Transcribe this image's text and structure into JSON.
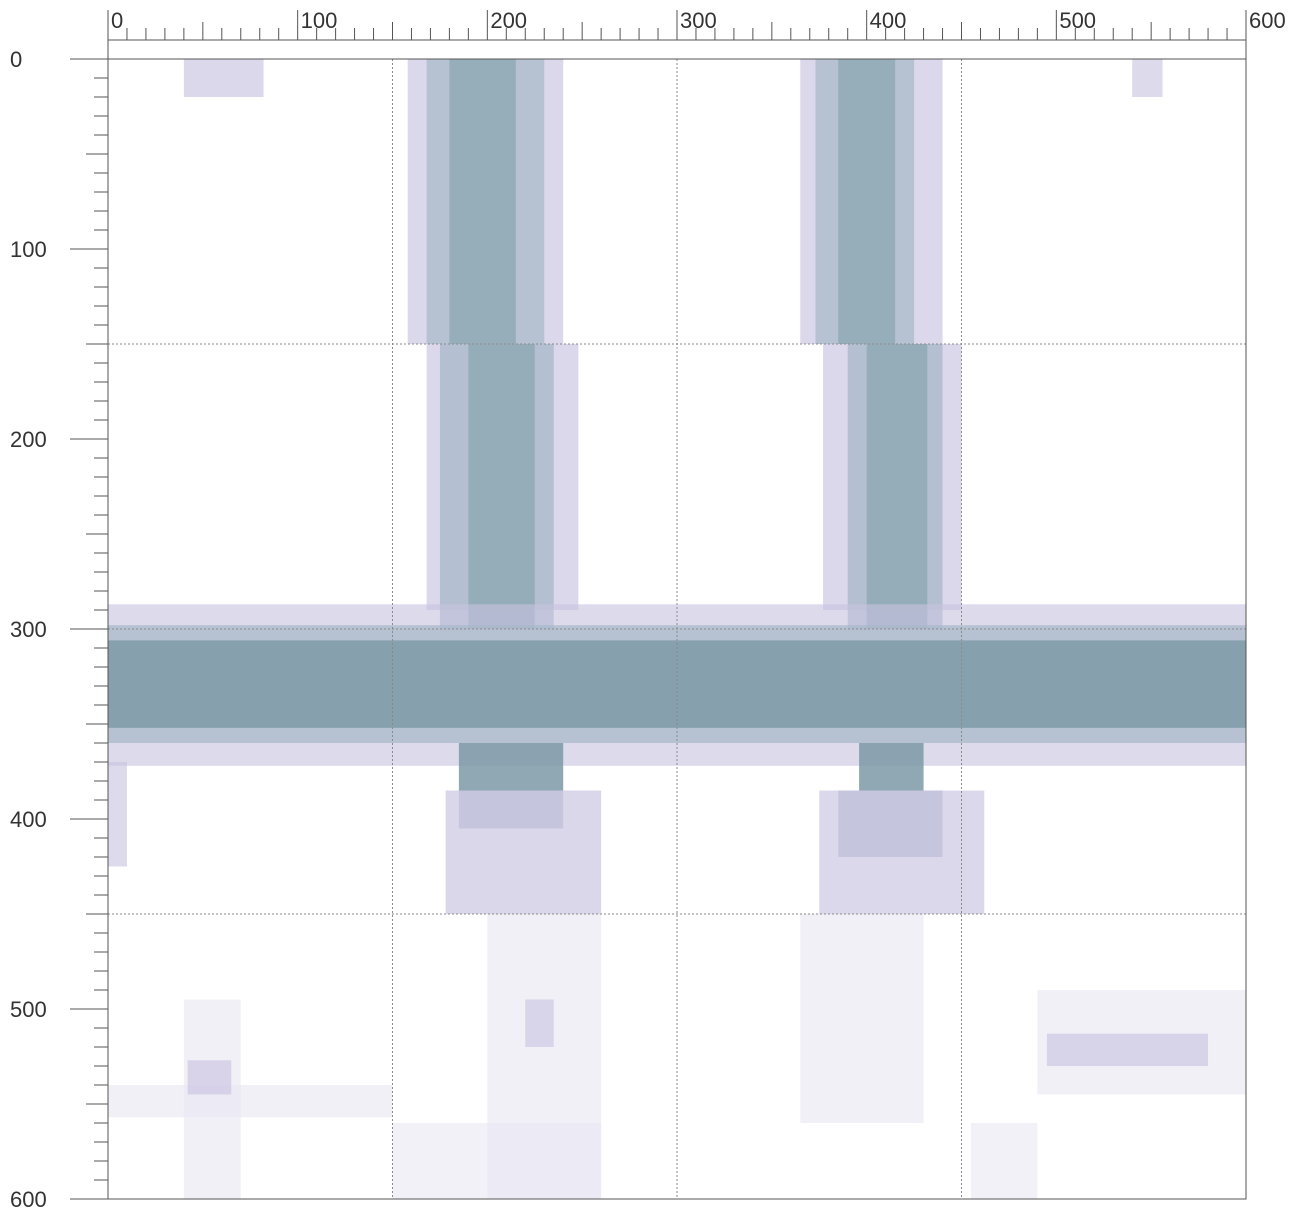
{
  "chart_data": {
    "type": "heatmap",
    "title": "",
    "xlabel": "",
    "ylabel": "",
    "xlim": [
      0,
      600
    ],
    "ylim": [
      0,
      600
    ],
    "y_axis_inverted": true,
    "x_ticks": [
      0,
      100,
      200,
      300,
      400,
      500,
      600
    ],
    "y_ticks": [
      0,
      100,
      200,
      300,
      400,
      500,
      600
    ],
    "x_tick_labels": [
      "0",
      "100",
      "200",
      "300",
      "400",
      "500",
      "600"
    ],
    "y_tick_labels": [
      "0",
      "100",
      "200",
      "300",
      "400",
      "500",
      "600"
    ],
    "x_minor_tick_step": 10,
    "y_minor_tick_step": 10,
    "grid": true,
    "grid_lines_x": [
      150,
      300,
      450
    ],
    "grid_lines_y": [
      150,
      300,
      450
    ],
    "colors": {
      "low": "#e8e6f2",
      "mid_low": "#c8c2e0",
      "mid": "#a7b8c8",
      "mid_high": "#8fa9b4",
      "high": "#7e9ba8",
      "grid": "#8a8a8a",
      "axis": "#555555"
    },
    "cells": [
      {
        "x0": 40,
        "x1": 82,
        "y0": 0,
        "y1": 20,
        "v": 0.2
      },
      {
        "x0": 540,
        "x1": 556,
        "y0": 0,
        "y1": 20,
        "v": 0.15
      },
      {
        "x0": 158,
        "x1": 240,
        "y0": 0,
        "y1": 150,
        "v": 0.2
      },
      {
        "x0": 168,
        "x1": 230,
        "y0": 0,
        "y1": 150,
        "v": 0.45
      },
      {
        "x0": 180,
        "x1": 215,
        "y0": 0,
        "y1": 150,
        "v": 0.7
      },
      {
        "x0": 168,
        "x1": 248,
        "y0": 150,
        "y1": 290,
        "v": 0.2
      },
      {
        "x0": 175,
        "x1": 235,
        "y0": 150,
        "y1": 300,
        "v": 0.5
      },
      {
        "x0": 190,
        "x1": 225,
        "y0": 150,
        "y1": 300,
        "v": 0.75
      },
      {
        "x0": 365,
        "x1": 440,
        "y0": 0,
        "y1": 150,
        "v": 0.2
      },
      {
        "x0": 373,
        "x1": 425,
        "y0": 0,
        "y1": 150,
        "v": 0.45
      },
      {
        "x0": 385,
        "x1": 415,
        "y0": 0,
        "y1": 150,
        "v": 0.7
      },
      {
        "x0": 377,
        "x1": 450,
        "y0": 150,
        "y1": 290,
        "v": 0.2
      },
      {
        "x0": 390,
        "x1": 440,
        "y0": 150,
        "y1": 300,
        "v": 0.5
      },
      {
        "x0": 400,
        "x1": 432,
        "y0": 150,
        "y1": 300,
        "v": 0.75
      },
      {
        "x0": 0,
        "x1": 600,
        "y0": 287,
        "y1": 372,
        "v": 0.15
      },
      {
        "x0": 0,
        "x1": 600,
        "y0": 298,
        "y1": 360,
        "v": 0.45
      },
      {
        "x0": 0,
        "x1": 600,
        "y0": 306,
        "y1": 352,
        "v": 0.8
      },
      {
        "x0": 0,
        "x1": 10,
        "y0": 370,
        "y1": 425,
        "v": 0.15
      },
      {
        "x0": 185,
        "x1": 240,
        "y0": 360,
        "y1": 385,
        "v": 0.8
      },
      {
        "x0": 185,
        "x1": 240,
        "y0": 385,
        "y1": 405,
        "v": 0.45
      },
      {
        "x0": 178,
        "x1": 260,
        "y0": 385,
        "y1": 450,
        "v": 0.25
      },
      {
        "x0": 396,
        "x1": 430,
        "y0": 360,
        "y1": 385,
        "v": 0.8
      },
      {
        "x0": 385,
        "x1": 440,
        "y0": 385,
        "y1": 420,
        "v": 0.4
      },
      {
        "x0": 375,
        "x1": 462,
        "y0": 385,
        "y1": 450,
        "v": 0.2
      },
      {
        "x0": 200,
        "x1": 260,
        "y0": 450,
        "y1": 600,
        "v": 0.08
      },
      {
        "x0": 220,
        "x1": 235,
        "y0": 495,
        "y1": 520,
        "v": 0.15
      },
      {
        "x0": 365,
        "x1": 430,
        "y0": 450,
        "y1": 560,
        "v": 0.08
      },
      {
        "x0": 490,
        "x1": 600,
        "y0": 490,
        "y1": 545,
        "v": 0.08
      },
      {
        "x0": 495,
        "x1": 580,
        "y0": 513,
        "y1": 530,
        "v": 0.2
      },
      {
        "x0": 40,
        "x1": 70,
        "y0": 495,
        "y1": 600,
        "v": 0.08
      },
      {
        "x0": 0,
        "x1": 150,
        "y0": 540,
        "y1": 557,
        "v": 0.1
      },
      {
        "x0": 42,
        "x1": 65,
        "y0": 527,
        "y1": 545,
        "v": 0.18
      },
      {
        "x0": 150,
        "x1": 260,
        "y0": 560,
        "y1": 600,
        "v": 0.06
      },
      {
        "x0": 455,
        "x1": 490,
        "y0": 560,
        "y1": 600,
        "v": 0.06
      }
    ]
  }
}
